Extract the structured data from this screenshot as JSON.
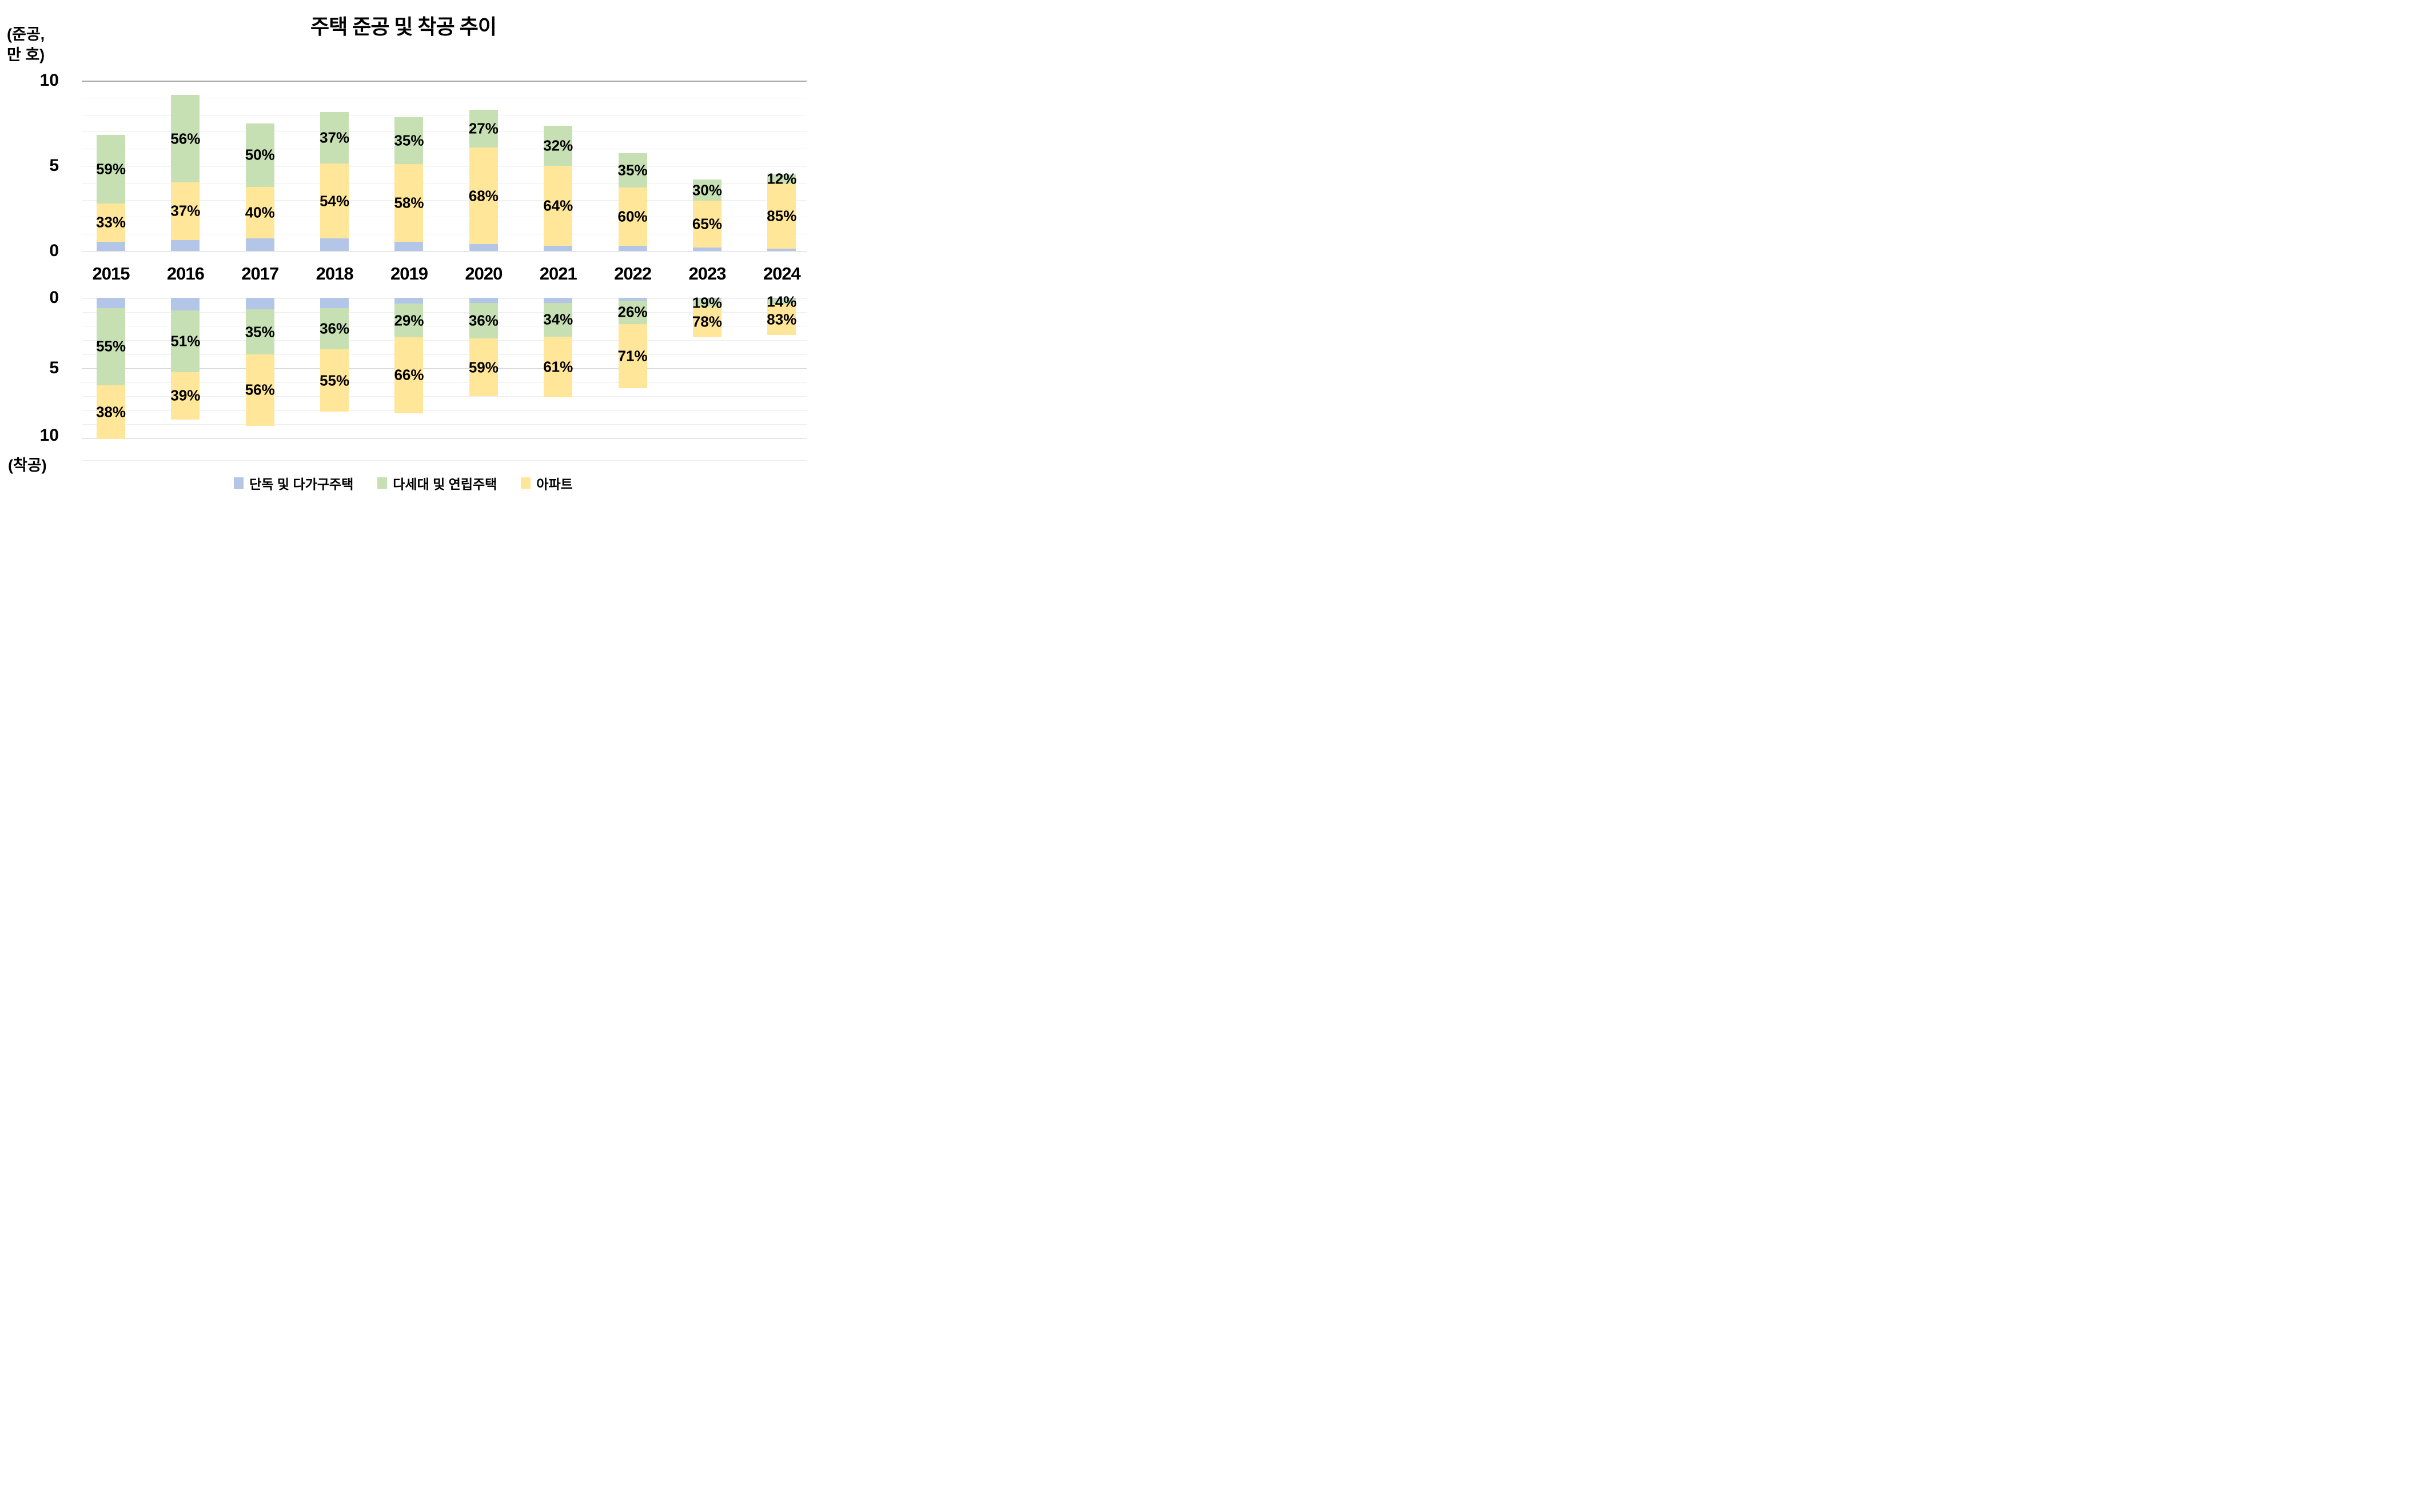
{
  "title": "주택 준공 및 착공 추이",
  "axis": {
    "top_unit_line1": "(준공,",
    "top_unit_line2": "만 호)",
    "bottom_axis_label": "(착공)",
    "top_ticks": [
      "10",
      "5",
      "0"
    ],
    "bottom_ticks": [
      "0",
      "5",
      "10"
    ],
    "value_max": 10,
    "grid": "on"
  },
  "colors": {
    "blue": "#b4c6e7",
    "green": "#c6e0b4",
    "yellow": "#ffe699",
    "grid_minor": "#ededed",
    "grid_major": "#d4d4d4",
    "grid_border": "#a8a8a8",
    "text": "#000000"
  },
  "legend": [
    {
      "name": "단독 및 다가구주택",
      "color_key": "blue"
    },
    {
      "name": "다세대 및 연립주택",
      "color_key": "green"
    },
    {
      "name": "아파트",
      "color_key": "yellow"
    }
  ],
  "chart_data": {
    "type": "bar",
    "stacked": true,
    "categories": [
      "2015",
      "2016",
      "2017",
      "2018",
      "2019",
      "2020",
      "2021",
      "2022",
      "2023",
      "2024"
    ],
    "unit": "만 호",
    "panels": [
      {
        "id": "completions",
        "label": "준공",
        "direction": "up",
        "totals": [
          6.8,
          9.15,
          7.5,
          8.15,
          7.85,
          8.3,
          7.35,
          5.75,
          4.2,
          4.5
        ],
        "stack_order_from_baseline": [
          "blue",
          "yellow",
          "green"
        ],
        "series": [
          {
            "name": "단독 및 다가구주택",
            "color_key": "blue",
            "pct": [
              8,
              7,
              10,
              9,
              7,
              5,
              4,
              5,
              5,
              3
            ],
            "show_labels": false
          },
          {
            "name": "아파트",
            "color_key": "yellow",
            "pct": [
              33,
              37,
              40,
              54,
              58,
              68,
              64,
              60,
              65,
              85
            ],
            "show_labels": true
          },
          {
            "name": "다세대 및 연립주택",
            "color_key": "green",
            "pct": [
              59,
              56,
              50,
              37,
              35,
              27,
              32,
              35,
              30,
              12
            ],
            "show_labels": true
          }
        ]
      },
      {
        "id": "starts",
        "label": "착공",
        "direction": "down",
        "totals": [
          10.05,
          8.65,
          9.1,
          8.1,
          8.2,
          7.0,
          7.05,
          6.4,
          2.8,
          2.65
        ],
        "stack_order_from_baseline": [
          "blue",
          "green",
          "yellow"
        ],
        "series": [
          {
            "name": "단독 및 다가구주택",
            "color_key": "blue",
            "pct": [
              7,
              10,
              9,
              9,
              5,
              5,
              5,
              3,
              3,
              3
            ],
            "show_labels": false
          },
          {
            "name": "다세대 및 연립주택",
            "color_key": "green",
            "pct": [
              55,
              51,
              35,
              36,
              29,
              36,
              34,
              26,
              19,
              14
            ],
            "show_labels": true
          },
          {
            "name": "아파트",
            "color_key": "yellow",
            "pct": [
              38,
              39,
              56,
              55,
              66,
              59,
              61,
              71,
              78,
              83
            ],
            "show_labels": true
          }
        ]
      }
    ]
  }
}
